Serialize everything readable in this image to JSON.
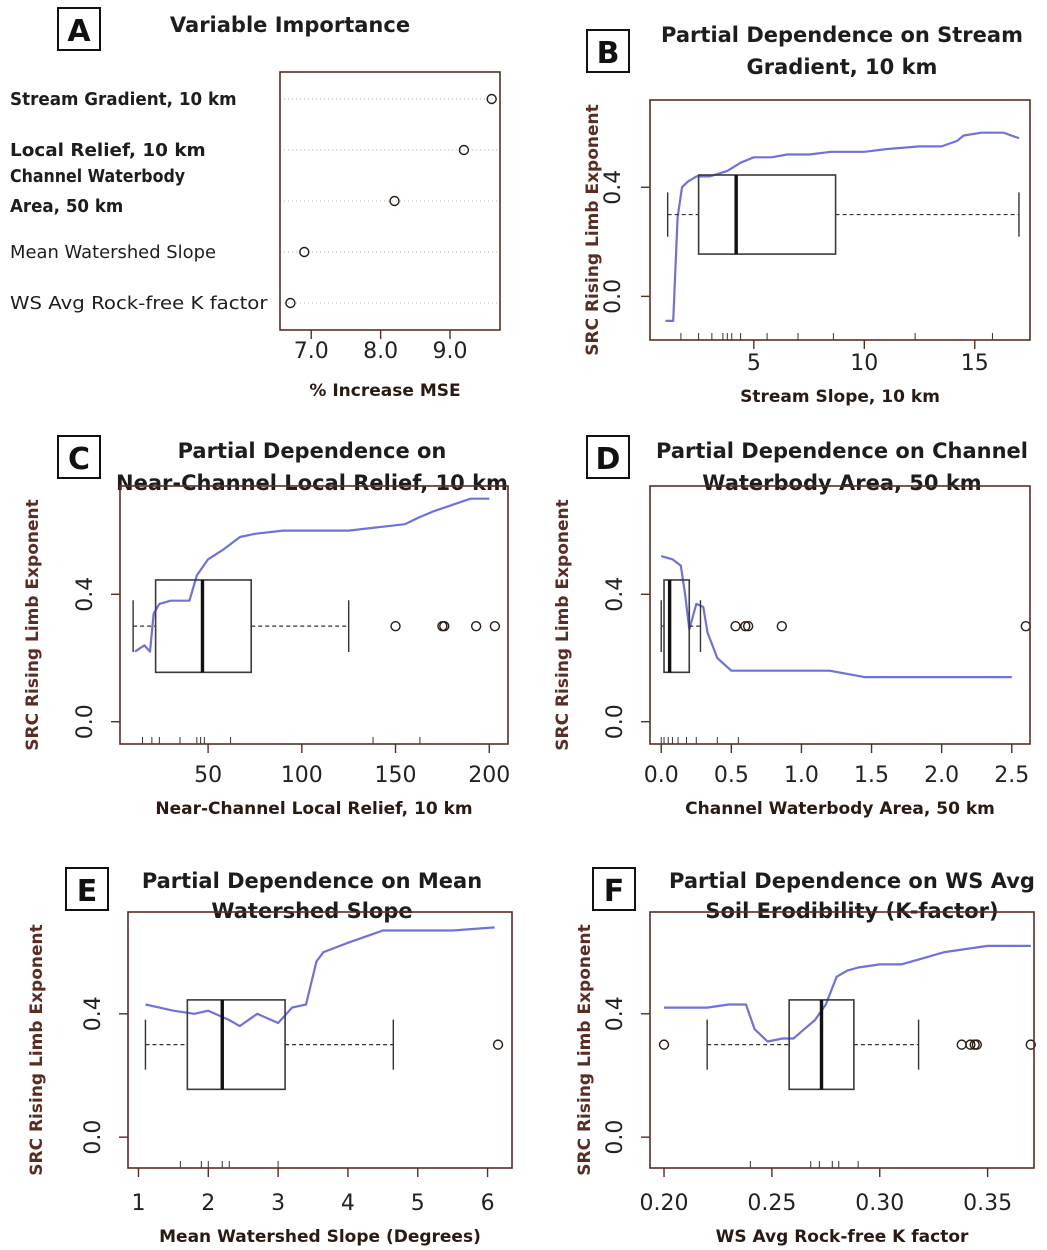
{
  "chart_data": [
    {
      "panel": "A",
      "type": "scatter",
      "title": "Variable Importance",
      "xlabel": "% Increase MSE",
      "ylabel": "",
      "xlim": [
        6.55,
        9.72
      ],
      "xticks": [
        "7.0",
        "8.0",
        "9.0"
      ],
      "xtick_values": [
        7.0,
        8.0,
        9.0
      ],
      "grid": "dotted horizontal",
      "categories": [
        {
          "label_lines": [
            "Stream Gradient, 10 km"
          ],
          "bold": true,
          "value": 9.6
        },
        {
          "label_lines": [
            "Local Relief, 10 km"
          ],
          "bold": true,
          "value": 9.2
        },
        {
          "label_lines": [
            "Channel Waterbody",
            "Area, 50 km"
          ],
          "bold": true,
          "value": 8.2
        },
        {
          "label_lines": [
            "Mean Watershed Slope"
          ],
          "bold": false,
          "value": 6.9
        },
        {
          "label_lines": [
            "WS Avg Rock-free K factor"
          ],
          "bold": false,
          "value": 6.7
        }
      ]
    },
    {
      "panel": "B",
      "type": "line",
      "title_lines": [
        "Partial Dependence on Stream",
        "Gradient, 10 km"
      ],
      "xlabel": "Stream Slope, 10 km",
      "ylabel": "SRC Rising Limb Exponent",
      "xlim": [
        0.3,
        17.5
      ],
      "ylim": [
        -0.16,
        0.72
      ],
      "xticks": [
        "5",
        "10",
        "15"
      ],
      "xtick_values": [
        5,
        10,
        15
      ],
      "yticks": [
        "0.0",
        "0.4"
      ],
      "ytick_values": [
        0.0,
        0.4
      ],
      "series": [
        {
          "x": [
            1.0,
            1.35,
            1.55,
            1.75,
            2.0,
            2.4,
            3.0,
            3.8,
            4.4,
            5.0,
            5.8,
            6.5,
            7.5,
            8.5,
            10.0,
            11.0,
            12.5,
            13.5,
            14.2,
            14.5,
            15.3,
            16.3,
            17.0
          ],
          "y": [
            -0.09,
            -0.09,
            0.29,
            0.4,
            0.42,
            0.44,
            0.44,
            0.46,
            0.49,
            0.51,
            0.51,
            0.52,
            0.52,
            0.53,
            0.53,
            0.54,
            0.55,
            0.55,
            0.57,
            0.59,
            0.6,
            0.6,
            0.58
          ]
        }
      ],
      "boxplot": {
        "min": 1.1,
        "q1": 2.5,
        "median": 4.2,
        "q3": 8.7,
        "max": 17.0,
        "y_center": 0.3,
        "y_half": 0.145,
        "outliers": []
      },
      "rug": [
        1.7,
        2.5,
        3.1,
        3.6,
        3.8,
        4.0,
        4.4,
        5.6,
        7.0,
        8.6,
        12.3,
        15.8
      ]
    },
    {
      "panel": "C",
      "type": "line",
      "title_lines": [
        "Partial Dependence on",
        "Near-Channel Local Relief, 10 km"
      ],
      "xlabel": "Near-Channel Local Relief, 10 km",
      "ylabel": "SRC Rising Limb Exponent",
      "xlim": [
        3,
        210
      ],
      "ylim": [
        -0.07,
        0.74
      ],
      "xticks": [
        "50",
        "100",
        "150",
        "200"
      ],
      "xtick_values": [
        50,
        100,
        150,
        200
      ],
      "yticks": [
        "0.0",
        "0.4"
      ],
      "ytick_values": [
        0.0,
        0.4
      ],
      "series": [
        {
          "x": [
            11,
            16,
            19,
            21,
            24,
            30,
            40,
            44,
            50,
            58,
            67,
            75,
            90,
            105,
            125,
            140,
            155,
            162,
            170,
            180,
            190,
            200
          ],
          "y": [
            0.22,
            0.24,
            0.22,
            0.34,
            0.37,
            0.38,
            0.38,
            0.46,
            0.51,
            0.54,
            0.58,
            0.59,
            0.6,
            0.6,
            0.6,
            0.61,
            0.62,
            0.64,
            0.66,
            0.68,
            0.7,
            0.7
          ]
        }
      ],
      "boxplot": {
        "min": 10,
        "q1": 22,
        "median": 47,
        "q3": 73,
        "max": 125,
        "y_center": 0.3,
        "y_half": 0.145,
        "outliers": [
          150,
          175,
          176,
          193,
          203
        ]
      },
      "rug": [
        15,
        20,
        24,
        35,
        44,
        46,
        48,
        62,
        138,
        163
      ]
    },
    {
      "panel": "D",
      "type": "line",
      "title_lines": [
        "Partial Dependence on Channel",
        "Waterbody Area, 50 km"
      ],
      "xlabel": "Channel Waterbody Area, 50 km",
      "ylabel": "SRC Rising Limb Exponent",
      "xlim": [
        -0.08,
        2.63
      ],
      "ylim": [
        -0.07,
        0.74
      ],
      "xticks": [
        "0.0",
        "0.5",
        "1.0",
        "1.5",
        "2.0",
        "2.5"
      ],
      "xtick_values": [
        0.0,
        0.5,
        1.0,
        1.5,
        2.0,
        2.5
      ],
      "yticks": [
        "0.0",
        "0.4"
      ],
      "ytick_values": [
        0.0,
        0.4
      ],
      "series": [
        {
          "x": [
            0.0,
            0.08,
            0.14,
            0.17,
            0.2,
            0.25,
            0.3,
            0.33,
            0.4,
            0.5,
            0.6,
            0.9,
            1.2,
            1.45,
            1.6,
            2.0,
            2.5
          ],
          "y": [
            0.52,
            0.51,
            0.49,
            0.4,
            0.29,
            0.37,
            0.36,
            0.28,
            0.2,
            0.16,
            0.16,
            0.16,
            0.16,
            0.14,
            0.14,
            0.14,
            0.14
          ]
        }
      ],
      "boxplot": {
        "min": 0.0,
        "q1": 0.02,
        "median": 0.06,
        "q3": 0.2,
        "max": 0.28,
        "y_center": 0.3,
        "y_half": 0.145,
        "outliers": [
          0.53,
          0.6,
          0.62,
          0.86,
          2.6
        ]
      },
      "rug": [
        0.0,
        0.02,
        0.05,
        0.08,
        0.12,
        0.18,
        0.25,
        0.4,
        0.55
      ]
    },
    {
      "panel": "E",
      "type": "line",
      "title_lines": [
        "Partial Dependence on Mean",
        "Watershed Slope"
      ],
      "xlabel": "Mean Watershed Slope (Degrees)",
      "ylabel": "SRC Rising Limb Exponent",
      "xlim": [
        0.85,
        6.35
      ],
      "ylim": [
        -0.1,
        0.73
      ],
      "xticks": [
        "1",
        "2",
        "3",
        "4",
        "5",
        "6"
      ],
      "xtick_values": [
        1,
        2,
        3,
        4,
        5,
        6
      ],
      "yticks": [
        "0.0",
        "0.4"
      ],
      "ytick_values": [
        0.0,
        0.4
      ],
      "series": [
        {
          "x": [
            1.1,
            1.3,
            1.5,
            1.8,
            2.0,
            2.3,
            2.45,
            2.7,
            3.0,
            3.2,
            3.4,
            3.55,
            3.65,
            4.0,
            4.5,
            5.0,
            5.5,
            6.1
          ],
          "y": [
            0.43,
            0.42,
            0.41,
            0.4,
            0.41,
            0.38,
            0.36,
            0.4,
            0.37,
            0.42,
            0.43,
            0.57,
            0.6,
            0.63,
            0.67,
            0.67,
            0.67,
            0.68
          ]
        }
      ],
      "boxplot": {
        "min": 1.1,
        "q1": 1.7,
        "median": 2.2,
        "q3": 3.1,
        "max": 4.65,
        "y_center": 0.3,
        "y_half": 0.145,
        "outliers": [
          6.15
        ]
      },
      "rug": [
        1.6,
        1.9,
        2.0,
        2.2,
        2.3,
        3.0
      ]
    },
    {
      "panel": "F",
      "type": "line",
      "title_lines": [
        "Partial Dependence on WS Avg",
        "Soil Erodibility (K-factor)"
      ],
      "xlabel": "WS Avg Rock-free K factor",
      "ylabel": "SRC Rising Limb Exponent",
      "xlim": [
        0.1935,
        0.3715
      ],
      "ylim": [
        -0.1,
        0.73
      ],
      "xticks": [
        "0.20",
        "0.25",
        "0.30",
        "0.35"
      ],
      "xtick_values": [
        0.2,
        0.25,
        0.3,
        0.35
      ],
      "yticks": [
        "0.0",
        "0.4"
      ],
      "ytick_values": [
        0.0,
        0.4
      ],
      "series": [
        {
          "x": [
            0.2,
            0.21,
            0.22,
            0.23,
            0.238,
            0.242,
            0.248,
            0.255,
            0.26,
            0.265,
            0.27,
            0.275,
            0.28,
            0.285,
            0.29,
            0.3,
            0.31,
            0.32,
            0.33,
            0.34,
            0.35,
            0.37
          ],
          "y": [
            0.42,
            0.42,
            0.42,
            0.43,
            0.43,
            0.35,
            0.31,
            0.32,
            0.32,
            0.35,
            0.38,
            0.43,
            0.52,
            0.54,
            0.55,
            0.56,
            0.56,
            0.58,
            0.6,
            0.61,
            0.62,
            0.62
          ]
        }
      ],
      "boxplot": {
        "min": 0.22,
        "q1": 0.258,
        "median": 0.273,
        "q3": 0.288,
        "max": 0.318,
        "y_center": 0.3,
        "y_half": 0.145,
        "outliers": [
          0.2,
          0.338,
          0.342,
          0.344,
          0.345,
          0.37
        ]
      },
      "rug": [
        0.24,
        0.268,
        0.272,
        0.278,
        0.281,
        0.29
      ]
    }
  ]
}
